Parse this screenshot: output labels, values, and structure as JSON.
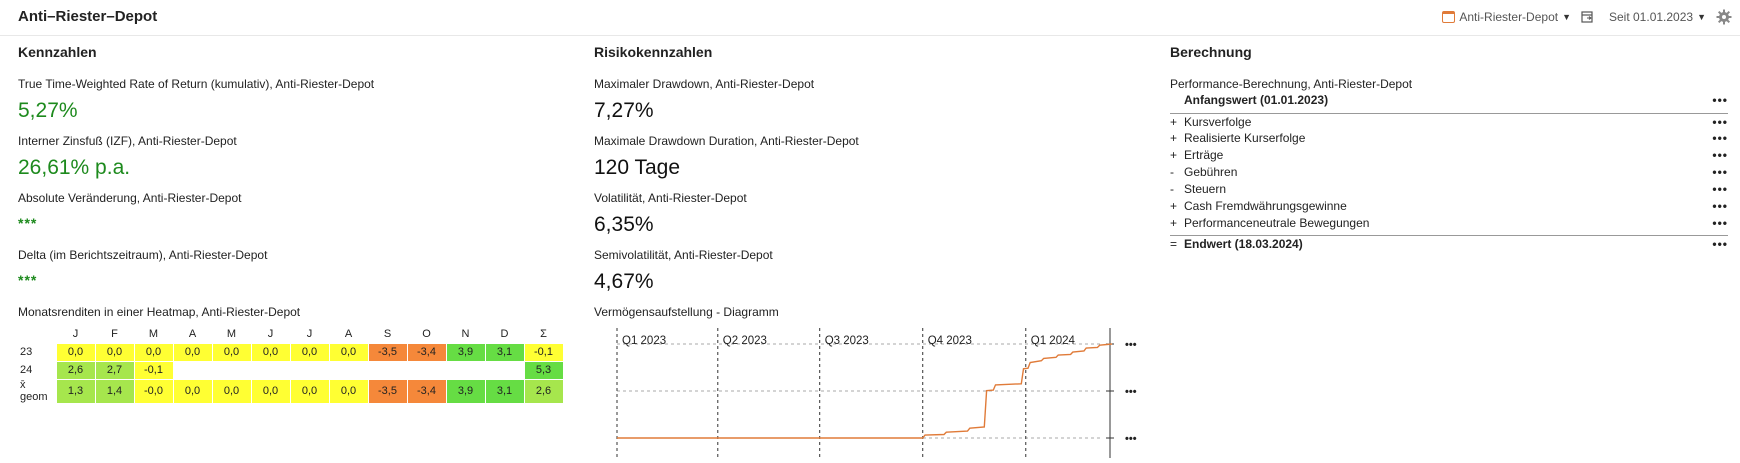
{
  "app_title": "Anti–Riester–Depot",
  "toolbar": {
    "depot_label": "Anti-Riester-Depot",
    "period_label": "Seit 01.01.2023"
  },
  "sections": {
    "kennzahlen": "Kennzahlen",
    "risiko": "Risikokennzahlen",
    "berechnung": "Berechnung"
  },
  "kennzahlen": [
    {
      "label": "True Time-Weighted Rate of Return (kumulativ), Anti-Riester-Depot",
      "value": "5,27%"
    },
    {
      "label": "Interner Zinsfuß (IZF), Anti-Riester-Depot",
      "value": "26,61% p.a."
    },
    {
      "label": "Absolute Veränderung, Anti-Riester-Depot",
      "value": "***"
    },
    {
      "label": "Delta (im Berichtszeitraum), Anti-Riester-Depot",
      "value": "***"
    }
  ],
  "heatmap": {
    "title": "Monatsrenditen in einer Heatmap, Anti-Riester-Depot",
    "columns": [
      "J",
      "F",
      "M",
      "A",
      "M",
      "J",
      "J",
      "A",
      "S",
      "O",
      "N",
      "D",
      "Σ"
    ],
    "rows": [
      {
        "label": "23",
        "cells": [
          "0,0",
          "0,0",
          "0,0",
          "0,0",
          "0,0",
          "0,0",
          "0,0",
          "0,0",
          "-3,5",
          "-3,4",
          "3,9",
          "3,1",
          "-0,1"
        ]
      },
      {
        "label": "24",
        "cells": [
          "2,6",
          "2,7",
          "-0,1",
          "",
          "",
          "",
          "",
          "",
          "",
          "",
          "",
          "",
          "5,3"
        ]
      },
      {
        "label": "x̄ geom",
        "cells": [
          "1,3",
          "1,4",
          "-0,0",
          "0,0",
          "0,0",
          "0,0",
          "0,0",
          "0,0",
          "-3,5",
          "-3,4",
          "3,9",
          "3,1",
          "2,6"
        ]
      }
    ],
    "colors": {
      "yellow": "#ffff33",
      "orange": "#f5883a",
      "light_green": "#a6e64d",
      "green": "#66dd44"
    }
  },
  "risiko": [
    {
      "label": "Maximaler Drawdown, Anti-Riester-Depot",
      "value": "7,27%"
    },
    {
      "label": "Maximale Drawdown Duration, Anti-Riester-Depot",
      "value": "120 Tage"
    },
    {
      "label": "Volatilität, Anti-Riester-Depot",
      "value": "6,35%"
    },
    {
      "label": "Semivolatilität, Anti-Riester-Depot",
      "value": "4,67%"
    }
  ],
  "chart_title": "Vermögensaufstellung - Diagramm",
  "chart_data": {
    "type": "line",
    "quarters": [
      "Q1 2023",
      "Q2 2023",
      "Q3 2023",
      "Q4 2023",
      "Q1 2024"
    ],
    "x_range": [
      "2023-01-01",
      "2024-03-18"
    ],
    "y_axis_labels": [
      "•••",
      "•••",
      "•••"
    ],
    "grid": true,
    "line_color": "#e07b39",
    "series": [
      {
        "points": [
          [
            "2023-01-01",
            0.0
          ],
          [
            "2023-10-01",
            0.0
          ],
          [
            "2023-10-03",
            0.5
          ],
          [
            "2023-10-20",
            0.6
          ],
          [
            "2023-10-22",
            1.0
          ],
          [
            "2023-11-10",
            1.2
          ],
          [
            "2023-11-12",
            1.7
          ],
          [
            "2023-11-25",
            1.9
          ],
          [
            "2023-11-27",
            8.2
          ],
          [
            "2023-12-03",
            8.3
          ],
          [
            "2023-12-05",
            9.2
          ],
          [
            "2023-12-28",
            9.4
          ],
          [
            "2023-12-30",
            12.0
          ],
          [
            "2024-01-03",
            12.1
          ],
          [
            "2024-01-05",
            13.1
          ],
          [
            "2024-01-15",
            13.4
          ],
          [
            "2024-01-17",
            13.8
          ],
          [
            "2024-01-28",
            14.0
          ],
          [
            "2024-01-30",
            14.4
          ],
          [
            "2024-02-10",
            14.5
          ],
          [
            "2024-02-12",
            14.9
          ],
          [
            "2024-02-22",
            15.1
          ],
          [
            "2024-02-24",
            15.6
          ],
          [
            "2024-03-05",
            15.7
          ],
          [
            "2024-03-07",
            16.1
          ],
          [
            "2024-03-18",
            16.3
          ]
        ]
      }
    ]
  },
  "berechnung": {
    "title": "Performance-Berechnung, Anti-Riester-Depot",
    "dots": "•••",
    "rows": [
      {
        "op": "",
        "label": "Anfangswert (01.01.2023)",
        "bold": true
      },
      {
        "op": "+",
        "label": "Kursverfolge"
      },
      {
        "op": "+",
        "label": "Realisierte Kurserfolge"
      },
      {
        "op": "+",
        "label": "Erträge"
      },
      {
        "op": "-",
        "label": "Gebühren"
      },
      {
        "op": "-",
        "label": "Steuern"
      },
      {
        "op": "+",
        "label": "Cash Fremdwährungsgewinne"
      },
      {
        "op": "+",
        "label": "Performanceneutrale Bewegungen"
      },
      {
        "op": "=",
        "label": "Endwert (18.03.2024)",
        "bold": true
      }
    ]
  }
}
